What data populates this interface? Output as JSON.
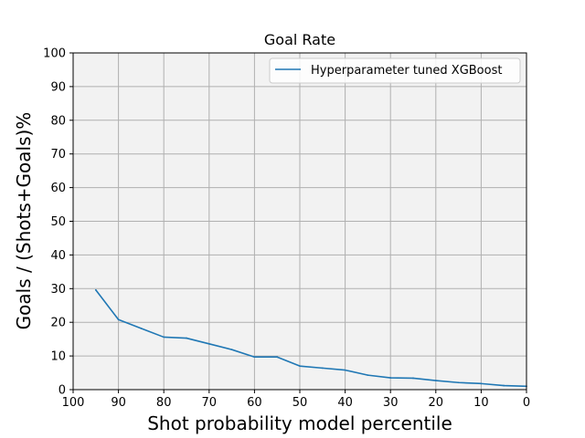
{
  "chart_data": {
    "type": "line",
    "title": "Goal Rate",
    "xlabel": "Shot probability model percentile",
    "ylabel": "Goals / (Shots+Goals)%",
    "xlim": [
      100,
      0
    ],
    "ylim": [
      0,
      100
    ],
    "x_reversed": true,
    "xticks": [
      100,
      90,
      80,
      70,
      60,
      50,
      40,
      30,
      20,
      10,
      0
    ],
    "yticks": [
      0,
      10,
      20,
      30,
      40,
      50,
      60,
      70,
      80,
      90,
      100
    ],
    "grid": true,
    "legend_position": "top-right",
    "background": "#f2f2f2",
    "series": [
      {
        "name": "Hyperparameter tuned XGBoost",
        "color": "#1f77b4",
        "x": [
          95,
          90,
          85,
          80,
          75,
          70,
          65,
          60,
          55,
          50,
          45,
          40,
          35,
          30,
          25,
          20,
          15,
          10,
          5,
          0
        ],
        "y": [
          29.6,
          20.8,
          18.2,
          15.6,
          15.3,
          13.6,
          11.9,
          9.7,
          9.7,
          7.0,
          6.4,
          5.8,
          4.3,
          3.5,
          3.4,
          2.7,
          2.1,
          1.8,
          1.2,
          1.0
        ]
      }
    ]
  }
}
